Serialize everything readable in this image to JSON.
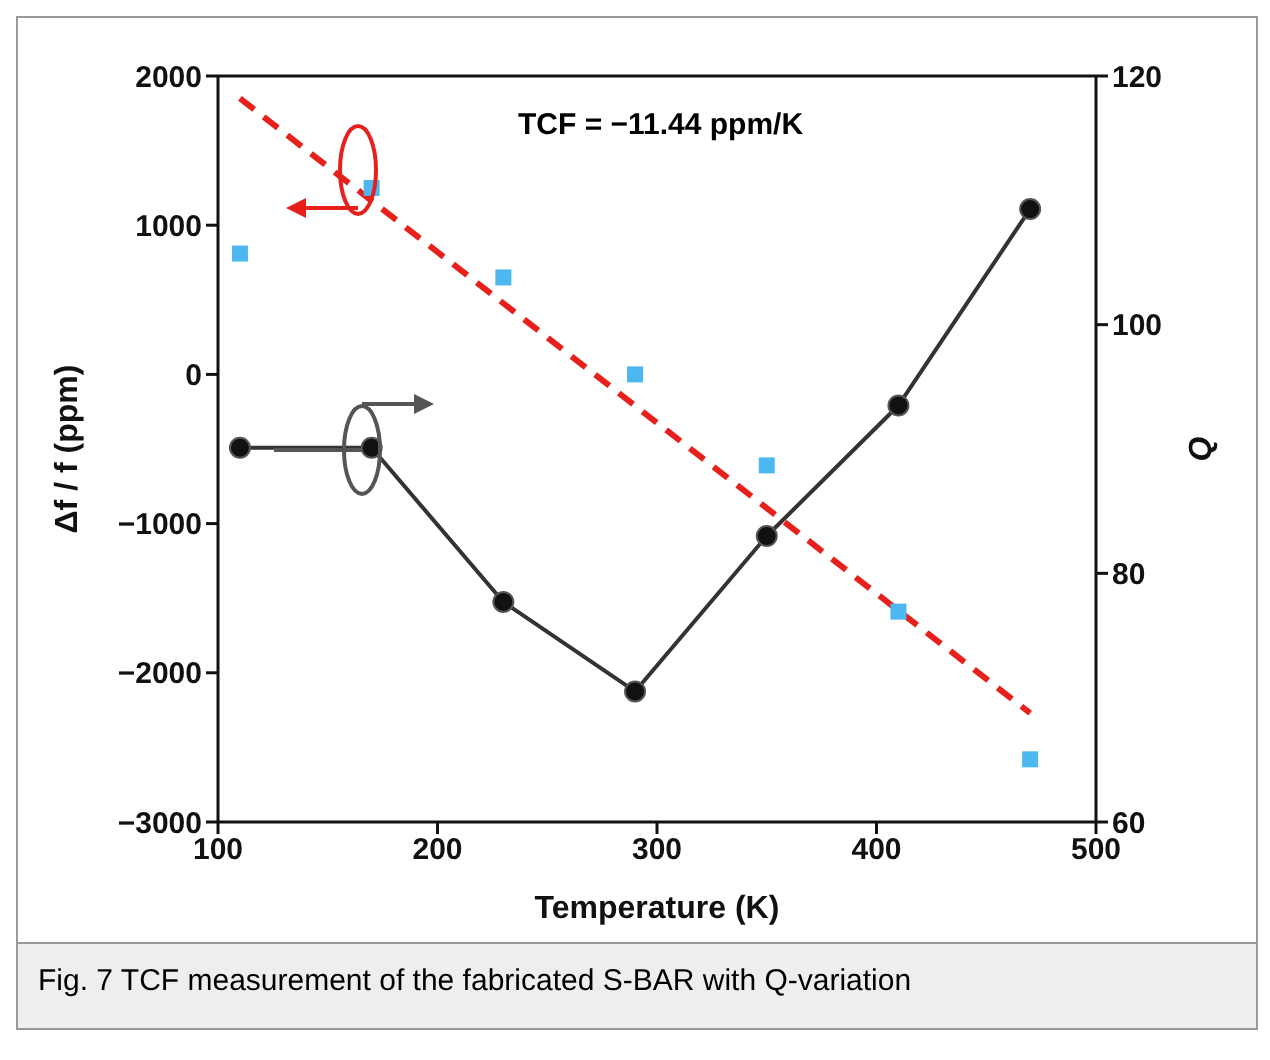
{
  "chart_data": {
    "type": "line",
    "xlabel": "Temperature (K)",
    "ylabel": "Δf / f (ppm)",
    "y2label": "Q",
    "xlim": [
      100,
      500
    ],
    "xticks": [
      100,
      200,
      300,
      400,
      500
    ],
    "ylim": [
      -3000,
      2000
    ],
    "yticks": [
      -3000,
      -2000,
      -1000,
      0,
      1000,
      2000
    ],
    "y2lim": [
      60,
      120
    ],
    "y2ticks": [
      60,
      80,
      100,
      120
    ],
    "series": [
      {
        "type": "scatter",
        "color": "#4db8f0",
        "marker": "square",
        "x": [
          110,
          170,
          230,
          290,
          350,
          410,
          470
        ],
        "values": [
          810,
          1250,
          650,
          0,
          -610,
          -1590,
          -2580
        ]
      },
      {
        "color": "#e8201c",
        "line_style": "dashed",
        "marker": "none",
        "x": [
          110,
          470
        ],
        "values": [
          1850,
          -2270
        ]
      },
      {
        "color": "#333333",
        "marker": "circle",
        "axis": "y2",
        "x": [
          110,
          170,
          230,
          290,
          350,
          410,
          470
        ],
        "values": [
          90.1,
          90.1,
          77.7,
          70.5,
          83.0,
          93.5,
          109.3
        ]
      }
    ],
    "annotations": [
      "TCF = −11.44 ppm/K",
      "Fig. 7 TCF measurement of the fabricated S-BAR with Q-variation"
    ]
  }
}
